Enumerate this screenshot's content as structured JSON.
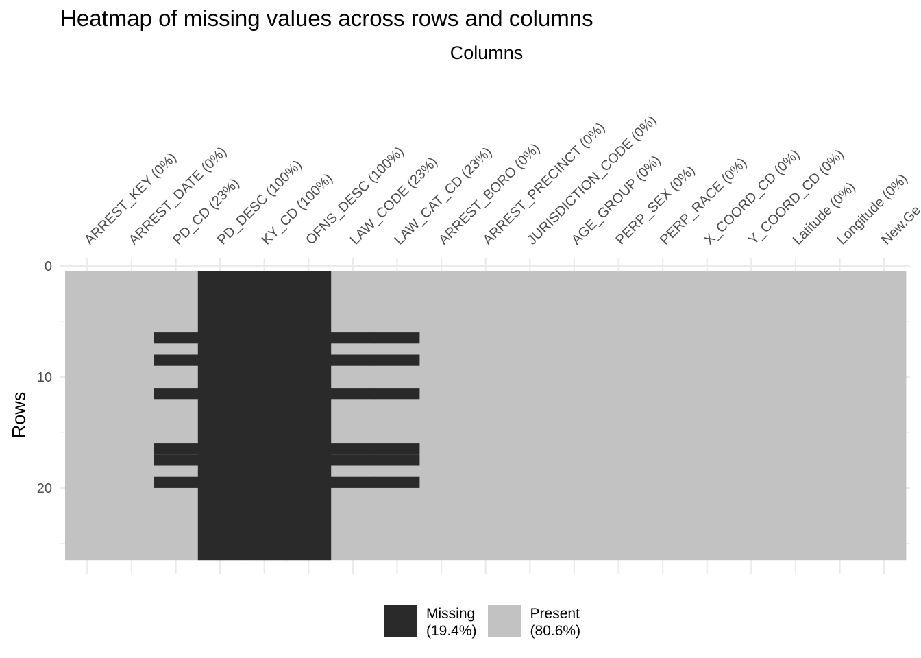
{
  "title": "Heatmap of missing values across rows and columns",
  "colors": {
    "missing": "#2a2a2a",
    "present": "#c2c2c2",
    "grid": "#ebebeb",
    "tick_text": "#4d4d4d"
  },
  "legend": {
    "position": "bottom",
    "items": [
      {
        "label": "Missing",
        "pct": "(19.4%)",
        "color": "#2a2a2a"
      },
      {
        "label": "Present",
        "pct": "(80.6%)",
        "color": "#c2c2c2"
      }
    ]
  },
  "chart_data": {
    "type": "heatmap",
    "title": "Heatmap of missing values across rows and columns",
    "xlabel": "Columns",
    "ylabel": "Rows",
    "x_axis_position": "top",
    "grid": true,
    "columns": [
      "ARREST_KEY (0%)",
      "ARREST_DATE (0%)",
      "PD_CD (23%)",
      "PD_DESC (100%)",
      "KY_CD (100%)",
      "OFNS_DESC (100%)",
      "LAW_CODE (23%)",
      "LAW_CAT_CD (23%)",
      "ARREST_BORO (0%)",
      "ARREST_PRECINCT (0%)",
      "JURISDICTION_CODE (0%)",
      "AGE_GROUP (0%)",
      "PERP_SEX (0%)",
      "PERP_RACE (0%)",
      "X_COORD_CD (0%)",
      "Y_COORD_CD (0%)",
      "Latitude (0%)",
      "Longitude (0%)",
      "New.Ge"
    ],
    "n_rows": 26,
    "ylim": [
      0,
      26
    ],
    "yticks": [
      0,
      10,
      20
    ],
    "missing_rows_by_column": {
      "PD_CD (23%)": [
        6,
        8,
        11,
        16,
        17,
        19
      ],
      "PD_DESC (100%)": "all",
      "KY_CD (100%)": "all",
      "OFNS_DESC (100%)": "all",
      "LAW_CODE (23%)": [
        6,
        8,
        11,
        16,
        17,
        19
      ],
      "LAW_CAT_CD (23%)": [
        6,
        8,
        11,
        16,
        17,
        19
      ]
    },
    "legend": [
      {
        "name": "Missing",
        "pct": 19.4
      },
      {
        "name": "Present",
        "pct": 80.6
      }
    ]
  }
}
